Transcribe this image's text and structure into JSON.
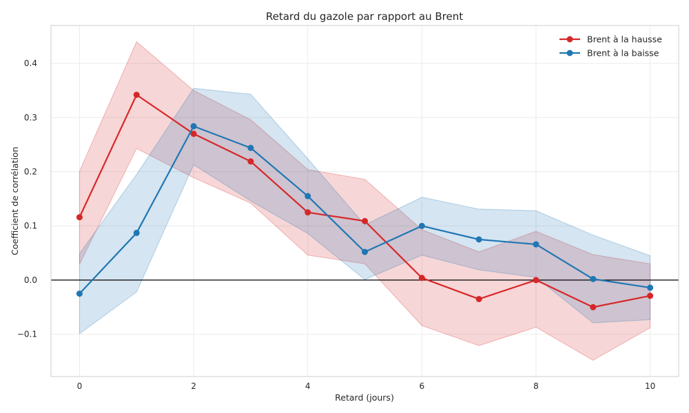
{
  "chart_data": {
    "type": "line",
    "title": "Retard du gazole par rapport au Brent",
    "xlabel": "Retard (jours)",
    "ylabel": "Coefficient de corrélation",
    "xlim": [
      -0.5,
      10.5
    ],
    "ylim": [
      -0.178,
      0.47
    ],
    "x_ticks": [
      0,
      2,
      4,
      6,
      8,
      10
    ],
    "y_ticks": [
      -0.1,
      0.0,
      0.1,
      0.2,
      0.3,
      0.4
    ],
    "x_tick_labels": [
      "0",
      "2",
      "4",
      "6",
      "8",
      "10"
    ],
    "y_tick_labels": [
      "−0.1",
      "0.0",
      "0.1",
      "0.2",
      "0.3",
      "0.4"
    ],
    "grid": true,
    "legend_position": "top-right",
    "reference_line_y": 0,
    "x": [
      0,
      1,
      2,
      3,
      4,
      5,
      6,
      7,
      8,
      9,
      10
    ],
    "series": [
      {
        "name": "Brent à la hausse",
        "color": "#d62728",
        "values": [
          0.116,
          0.342,
          0.27,
          0.219,
          0.125,
          0.109,
          0.004,
          -0.035,
          0.0,
          -0.05,
          -0.029
        ],
        "upper": [
          0.201,
          0.44,
          0.35,
          0.296,
          0.204,
          0.186,
          0.093,
          0.052,
          0.09,
          0.047,
          0.03
        ],
        "lower": [
          0.029,
          0.243,
          0.189,
          0.142,
          0.046,
          0.03,
          -0.084,
          -0.121,
          -0.087,
          -0.148,
          -0.088
        ]
      },
      {
        "name": "Brent à la baisse",
        "color": "#1f77b4",
        "values": [
          -0.025,
          0.087,
          0.284,
          0.244,
          0.155,
          0.052,
          0.1,
          0.075,
          0.066,
          0.002,
          -0.014
        ],
        "upper": [
          0.049,
          0.195,
          0.354,
          0.343,
          0.224,
          0.102,
          0.153,
          0.131,
          0.128,
          0.083,
          0.045
        ],
        "lower": [
          -0.099,
          -0.022,
          0.213,
          0.146,
          0.086,
          0.001,
          0.046,
          0.019,
          0.005,
          -0.079,
          -0.073
        ]
      }
    ]
  }
}
